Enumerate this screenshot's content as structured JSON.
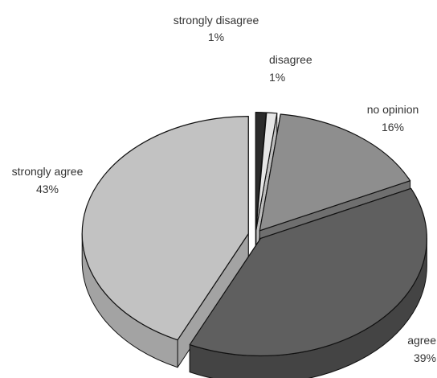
{
  "chart_data": {
    "type": "pie",
    "title": "",
    "slices": [
      {
        "label": "strongly disagree",
        "value": 1,
        "display": "1%",
        "color": "#2b2b2b",
        "side": "#1a1a1a"
      },
      {
        "label": "disagree",
        "value": 1,
        "display": "1%",
        "color": "#e6e6e6",
        "side": "#bdbdbd"
      },
      {
        "label": "no opinion",
        "value": 16,
        "display": "16%",
        "color": "#8e8e8e",
        "side": "#6f6f6f"
      },
      {
        "label": "agree",
        "value": 39,
        "display": "39%",
        "color": "#5f5f5f",
        "side": "#444444"
      },
      {
        "label": "strongly agree",
        "value": 43,
        "display": "43%",
        "color": "#c2c2c2",
        "side": "#a3a3a3"
      }
    ],
    "legend": "none",
    "style": "3d exploded pie"
  }
}
